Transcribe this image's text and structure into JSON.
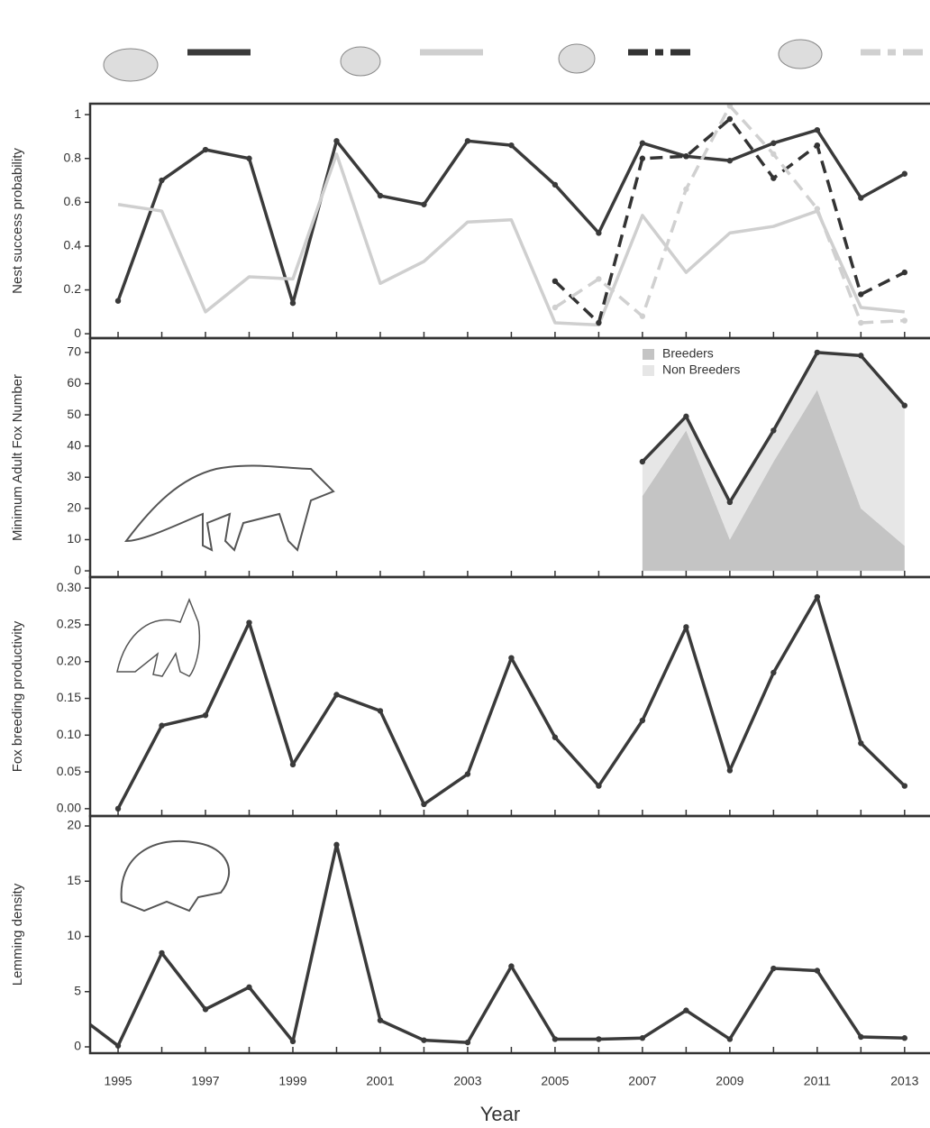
{
  "chart_data": [
    {
      "type": "line",
      "y_label": "Nest success probability",
      "xlim": [
        1994.36,
        2013.54
      ],
      "ylim": [
        -0.02,
        1.05
      ],
      "yticks": [
        0,
        0.2,
        0.4,
        0.6,
        0.8,
        1
      ],
      "series": [
        {
          "color": "#3a3a3a",
          "dash": false,
          "markers": true,
          "x": [
            1995,
            1996,
            1997,
            1998,
            1999,
            2000,
            2001,
            2002,
            2003,
            2004,
            2005,
            2006,
            2007,
            2008,
            2009,
            2010,
            2011,
            2012,
            2013
          ],
          "values": [
            0.15,
            0.7,
            0.84,
            0.8,
            0.14,
            0.88,
            0.63,
            0.59,
            0.88,
            0.86,
            0.68,
            0.46,
            0.87,
            0.81,
            0.79,
            0.87,
            0.93,
            0.62,
            0.73
          ]
        },
        {
          "color": "#cfcfcf",
          "dash": false,
          "markers": false,
          "x": [
            1995,
            1996,
            1997,
            1998,
            1999,
            2000,
            2001,
            2002,
            2003,
            2004,
            2005,
            2006,
            2007,
            2008,
            2009,
            2010,
            2011,
            2012,
            2013
          ],
          "values": [
            0.59,
            0.56,
            0.1,
            0.26,
            0.25,
            0.82,
            0.23,
            0.33,
            0.51,
            0.52,
            0.05,
            0.04,
            0.54,
            0.28,
            0.46,
            0.49,
            0.56,
            0.12,
            0.1
          ]
        },
        {
          "color": "#333333",
          "dash": true,
          "markers": true,
          "x": [
            2005,
            2006,
            2007,
            2008,
            2009,
            2010,
            2011,
            2012,
            2013
          ],
          "values": [
            0.24,
            0.05,
            0.8,
            0.81,
            0.98,
            0.71,
            0.86,
            0.18,
            0.28
          ]
        },
        {
          "color": "#d0d0d0",
          "dash": true,
          "markers": true,
          "x": [
            2005,
            2006,
            2007,
            2008,
            2009,
            2010,
            2011,
            2012,
            2013
          ],
          "values": [
            0.12,
            0.25,
            0.08,
            0.66,
            1.04,
            0.82,
            0.57,
            0.05,
            0.06
          ]
        }
      ]
    },
    {
      "type": "area",
      "y_label": "Minimum Adult Fox Number",
      "xlim": [
        1994.36,
        2013.54
      ],
      "ylim": [
        -2,
        74.6
      ],
      "yticks": [
        0,
        10,
        20,
        30,
        40,
        50,
        60,
        70
      ],
      "series": [
        {
          "name": "Breeders",
          "color": "#c4c4c4",
          "style": "area",
          "x": [
            2007,
            2008,
            2009,
            2010,
            2011,
            2012,
            2013
          ],
          "values": [
            24,
            45,
            10,
            35,
            58,
            20,
            8
          ]
        },
        {
          "name": "Non Breeders",
          "color": "#e6e6e6",
          "style": "area",
          "x": [
            2007,
            2008,
            2009,
            2010,
            2011,
            2012,
            2013
          ],
          "values": [
            11,
            4.5,
            12,
            10,
            12,
            49,
            45
          ]
        },
        {
          "color": "#3a3a3a",
          "style": "line",
          "x": [
            2007,
            2008,
            2009,
            2010,
            2011,
            2012,
            2013
          ],
          "values": [
            35,
            49.5,
            22,
            45,
            70,
            69,
            53
          ]
        }
      ]
    },
    {
      "type": "line",
      "y_label": "Fox breeding productivity",
      "xlim": [
        1994.36,
        2013.54
      ],
      "ylim": [
        -0.01,
        0.315
      ],
      "yticks": [
        {
          "value": 0,
          "label": "0.00"
        },
        {
          "value": 0.05,
          "label": "0.05"
        },
        {
          "value": 0.1,
          "label": "0.10"
        },
        {
          "value": 0.15,
          "label": "0.15"
        },
        {
          "value": 0.2,
          "label": "0.20"
        },
        {
          "value": 0.25,
          "label": "0.25"
        },
        {
          "value": 0.3,
          "label": "0.30"
        }
      ],
      "series": [
        {
          "color": "#3a3a3a",
          "dash": false,
          "markers": true,
          "x": [
            1995,
            1996,
            1997,
            1998,
            1999,
            2000,
            2001,
            2002,
            2003,
            2004,
            2005,
            2006,
            2007,
            2008,
            2009,
            2010,
            2011,
            2012,
            2013
          ],
          "values": [
            0.0,
            0.113,
            0.127,
            0.253,
            0.06,
            0.155,
            0.133,
            0.006,
            0.047,
            0.205,
            0.097,
            0.031,
            0.12,
            0.247,
            0.052,
            0.185,
            0.288,
            0.089,
            0.031
          ]
        }
      ]
    },
    {
      "type": "line",
      "y_label": "Lemming density",
      "x_label": "Year",
      "xlim": [
        1994.36,
        2013.54
      ],
      "ylim": [
        -0.57,
        20.9
      ],
      "yticks": [
        0,
        5,
        10,
        15,
        20
      ],
      "xticks": [
        1995,
        1997,
        1999,
        2001,
        2003,
        2005,
        2007,
        2009,
        2011,
        2013
      ],
      "xminorticks": [
        1996,
        1998,
        2000,
        2002,
        2004,
        2006,
        2008,
        2010,
        2012
      ],
      "series": [
        {
          "color": "#3a3a3a",
          "dash": false,
          "markers": true,
          "x": [
            1994,
            1995,
            1996,
            1997,
            1998,
            1999,
            2000,
            2001,
            2002,
            2003,
            2004,
            2005,
            2006,
            2007,
            2008,
            2009,
            2010,
            2011,
            2012,
            2013
          ],
          "values": [
            3.1,
            0.1,
            8.5,
            3.4,
            5.4,
            0.5,
            18.3,
            2.4,
            0.6,
            0.4,
            7.3,
            0.7,
            0.7,
            0.8,
            3.3,
            0.7,
            7.1,
            6.9,
            0.9,
            0.8
          ]
        }
      ]
    }
  ]
}
